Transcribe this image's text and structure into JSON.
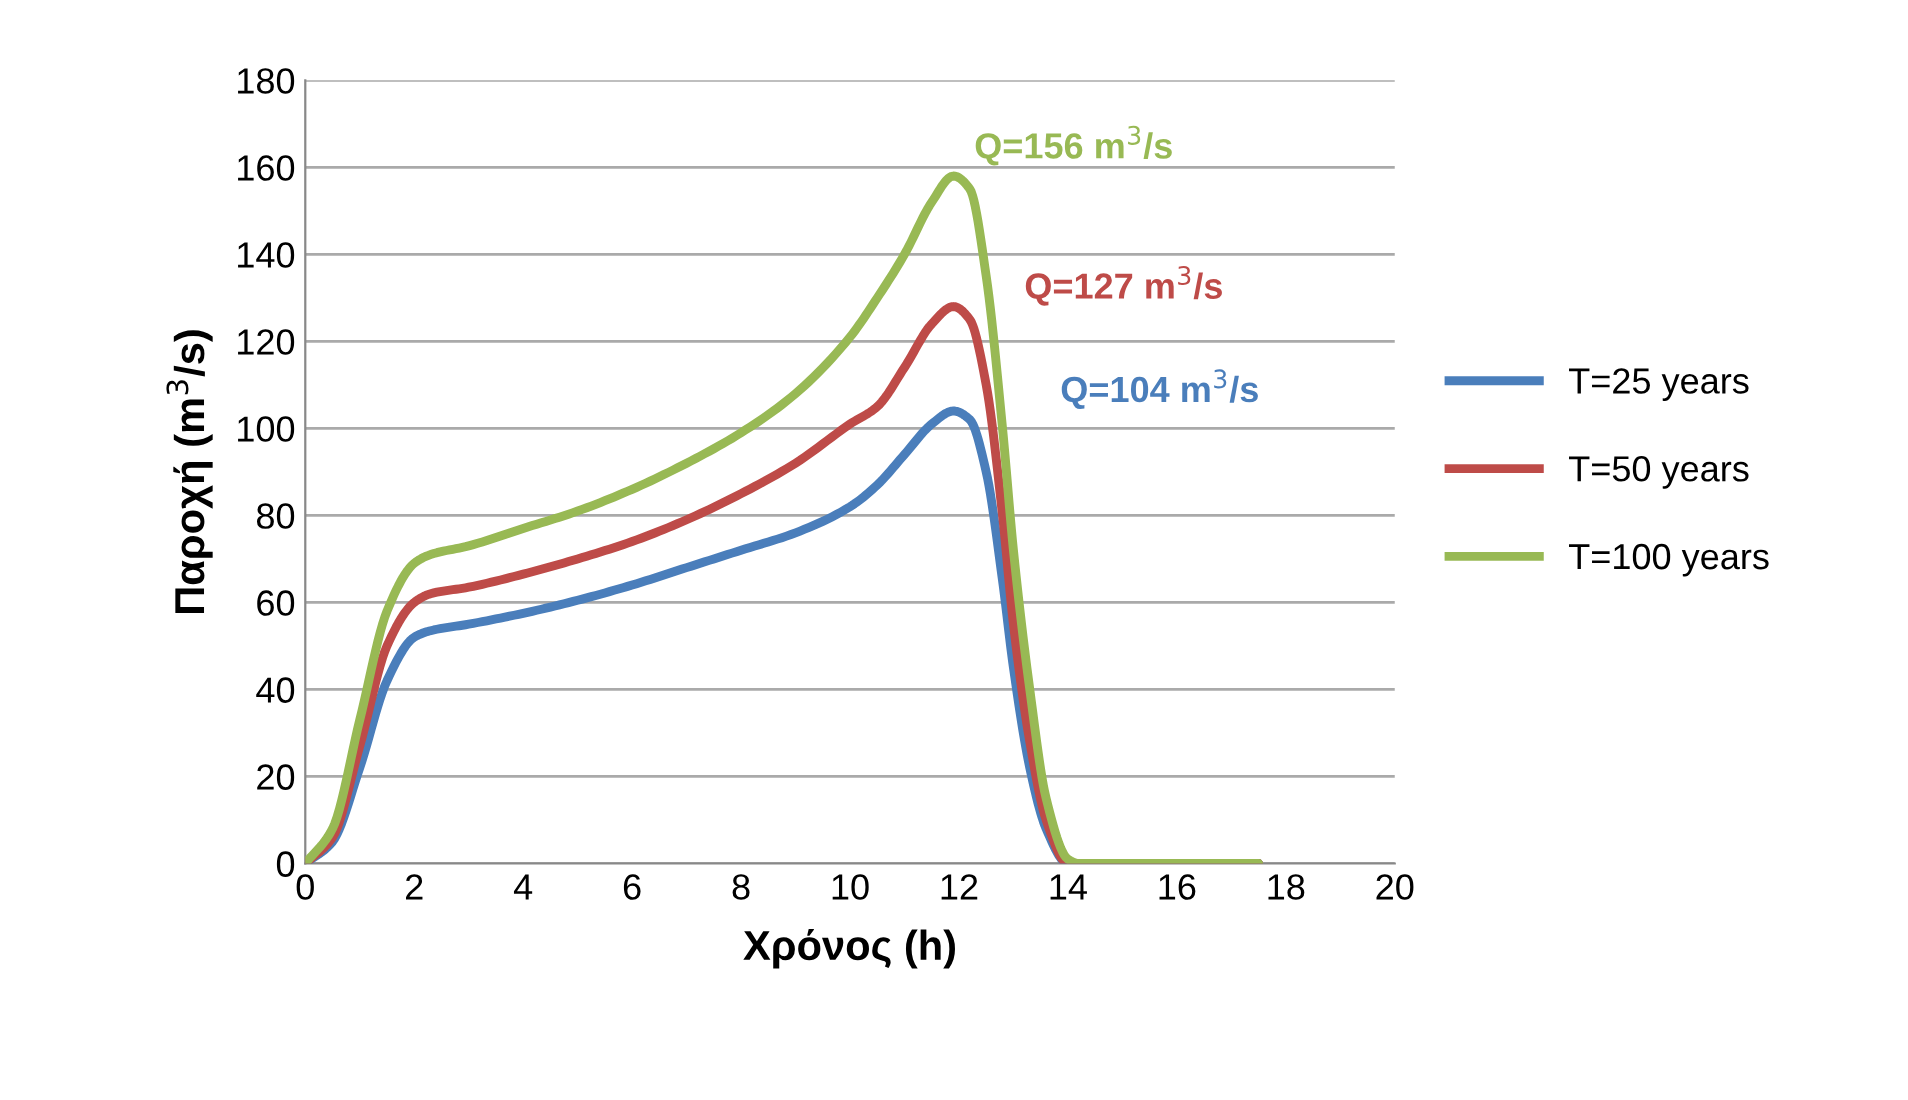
{
  "chart_data": {
    "type": "line",
    "xlabel": "Χρόνος (h)",
    "ylabel": "Παροχή (m$^{3}$/s)",
    "xlim": [
      0,
      20
    ],
    "xticks": [
      0,
      2,
      4,
      6,
      8,
      10,
      12,
      14,
      16,
      18,
      20
    ],
    "ylim": [
      0,
      180
    ],
    "yticks": [
      0,
      20,
      40,
      60,
      80,
      100,
      120,
      140,
      160,
      180
    ],
    "grid": "y",
    "legend": "right",
    "marker": "none",
    "line_style": "solid",
    "annotations": [
      "Q=156 m$^{3}$/s",
      "Q=127 m$^{3}$/s",
      "Q=104 m$^{3}$/s"
    ],
    "series": [
      {
        "name": "T=25 years",
        "color": "#4a7ebb",
        "x": [
          0,
          0.5,
          1,
          1.5,
          2,
          2.3,
          3,
          4,
          5,
          6,
          7,
          8,
          9,
          10,
          10.5,
          11,
          11.5,
          11.9,
          12.2,
          12.5,
          12.8,
          13,
          13.3,
          13.6,
          14,
          15,
          17.5
        ],
        "values": [
          0,
          5,
          22,
          42,
          52,
          53.5,
          55,
          57.5,
          60.5,
          64,
          68,
          72,
          76,
          82,
          87,
          94,
          101,
          104,
          102,
          90,
          65,
          45,
          22,
          8,
          0,
          0,
          0
        ]
      },
      {
        "name": "T=50 years",
        "color": "#be4b48",
        "x": [
          0,
          0.5,
          1,
          1.5,
          2,
          2.3,
          3,
          4,
          5,
          6,
          7,
          8,
          9,
          10,
          10.5,
          11,
          11.5,
          11.9,
          12.2,
          12.5,
          12.8,
          13,
          13.3,
          13.6,
          14,
          17.5
        ],
        "values": [
          0,
          6,
          27,
          50,
          60,
          62,
          63.5,
          66.5,
          70,
          74,
          79,
          85,
          92,
          101,
          105,
          114,
          124,
          128,
          125,
          110,
          80,
          55,
          28,
          10,
          0,
          0
        ]
      },
      {
        "name": "T=100 years",
        "color": "#98b954",
        "x": [
          0,
          0.5,
          1,
          1.5,
          2,
          2.3,
          3,
          4,
          5,
          6,
          7,
          8,
          9,
          10,
          10.5,
          11,
          11.5,
          11.9,
          12.2,
          12.5,
          12.8,
          13,
          13.3,
          13.6,
          14,
          14.2,
          17.5
        ],
        "values": [
          0,
          8,
          33,
          58,
          69,
          71,
          73,
          77,
          81,
          86,
          92,
          99,
          108,
          121,
          130,
          140,
          152,
          158,
          155,
          135,
          100,
          72,
          40,
          15,
          1,
          0,
          0
        ]
      }
    ]
  }
}
